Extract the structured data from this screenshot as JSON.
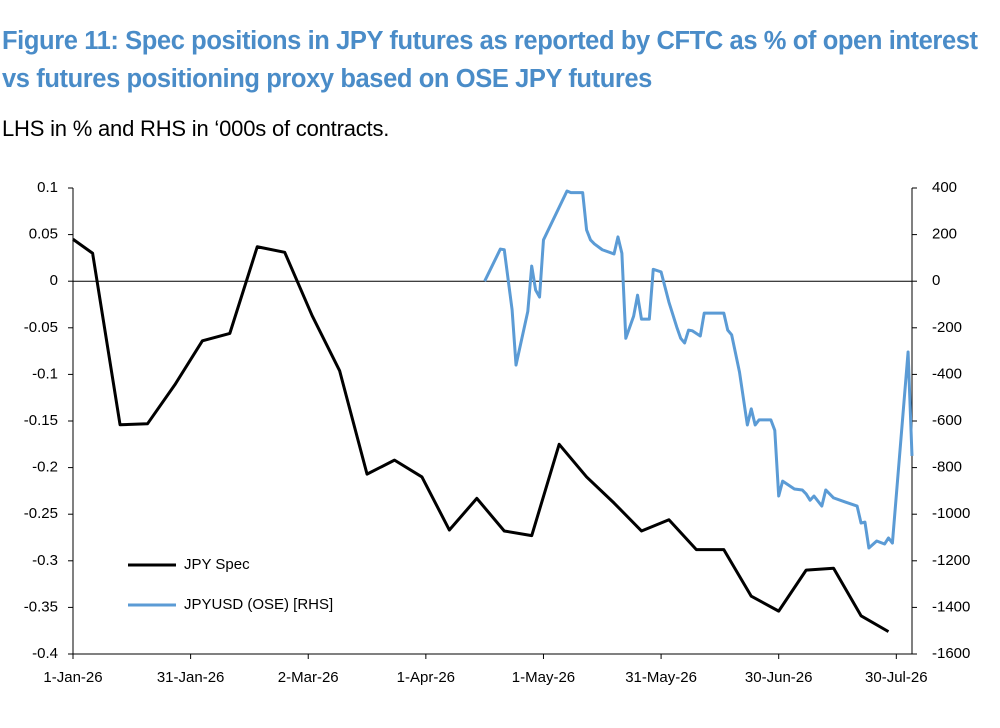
{
  "chart_data": {
    "type": "line",
    "title": "Figure 11: Spec positions in JPY futures as reported by CFTC as % of open interest vs futures positioning proxy based on OSE JPY futures",
    "subtitle": "LHS in % and RHS in ‘000s of contracts.",
    "xlim": [
      "2026-01-01",
      "2026-08-03"
    ],
    "xticks": [
      {
        "value": "2026-01-01",
        "label": "1-Jan-26"
      },
      {
        "value": "2026-01-31",
        "label": "31-Jan-26"
      },
      {
        "value": "2026-03-02",
        "label": "2-Mar-26"
      },
      {
        "value": "2026-04-01",
        "label": "1-Apr-26"
      },
      {
        "value": "2026-05-01",
        "label": "1-May-26"
      },
      {
        "value": "2026-05-31",
        "label": "31-May-26"
      },
      {
        "value": "2026-06-30",
        "label": "30-Jun-26"
      },
      {
        "value": "2026-07-30",
        "label": "30-Jul-26"
      }
    ],
    "ylim": [
      -0.4,
      0.1
    ],
    "yticks": [
      0.1,
      0.05,
      0,
      -0.05,
      -0.1,
      -0.15,
      -0.2,
      -0.25,
      -0.3,
      -0.35,
      -0.4
    ],
    "y2lim": [
      -1600,
      400
    ],
    "y2ticks": [
      400,
      200,
      0,
      -200,
      -400,
      -600,
      -800,
      -1000,
      -1200,
      -1400,
      -1600
    ],
    "legend": "lower left",
    "series": [
      {
        "name": "JPY Spec",
        "color": "#000000",
        "axis": "y",
        "x": [
          "2026-01-01",
          "2026-01-06",
          "2026-01-13",
          "2026-01-20",
          "2026-01-27",
          "2026-02-03",
          "2026-02-10",
          "2026-02-17",
          "2026-02-24",
          "2026-03-03",
          "2026-03-10",
          "2026-03-17",
          "2026-03-24",
          "2026-03-31",
          "2026-04-07",
          "2026-04-14",
          "2026-04-21",
          "2026-04-28",
          "2026-05-05",
          "2026-05-12",
          "2026-05-19",
          "2026-05-26",
          "2026-06-02",
          "2026-06-09",
          "2026-06-16",
          "2026-06-23",
          "2026-06-30",
          "2026-07-07",
          "2026-07-14",
          "2026-07-21",
          "2026-07-28"
        ],
        "values": [
          0.045,
          0.03,
          -0.154,
          -0.153,
          -0.111,
          -0.064,
          -0.056,
          0.037,
          0.031,
          -0.037,
          -0.096,
          -0.207,
          -0.192,
          -0.21,
          -0.267,
          -0.233,
          -0.268,
          -0.273,
          -0.175,
          -0.21,
          -0.238,
          -0.268,
          -0.256,
          -0.288,
          -0.288,
          -0.338,
          -0.354,
          -0.31,
          -0.308,
          -0.359,
          -0.376
        ]
      },
      {
        "name": "JPYUSD (OSE) [RHS]",
        "color": "#5b9bd5",
        "axis": "y2",
        "x": [
          "2026-04-16",
          "2026-04-20",
          "2026-04-21",
          "2026-04-23",
          "2026-04-24",
          "2026-04-27",
          "2026-04-28",
          "2026-04-29",
          "2026-04-30",
          "2026-05-01",
          "2026-05-07",
          "2026-05-08",
          "2026-05-11",
          "2026-05-12",
          "2026-05-13",
          "2026-05-14",
          "2026-05-16",
          "2026-05-19",
          "2026-05-20",
          "2026-05-21",
          "2026-05-22",
          "2026-05-24",
          "2026-05-25",
          "2026-05-26",
          "2026-05-28",
          "2026-05-29",
          "2026-05-31",
          "2026-06-01",
          "2026-06-02",
          "2026-06-04",
          "2026-06-05",
          "2026-06-06",
          "2026-06-07",
          "2026-06-08",
          "2026-06-10",
          "2026-06-11",
          "2026-06-16",
          "2026-06-17",
          "2026-06-18",
          "2026-06-20",
          "2026-06-22",
          "2026-06-23",
          "2026-06-24",
          "2026-06-25",
          "2026-06-28",
          "2026-06-29",
          "2026-06-30",
          "2026-07-01",
          "2026-07-04",
          "2026-07-06",
          "2026-07-07",
          "2026-07-08",
          "2026-07-09",
          "2026-07-11",
          "2026-07-12",
          "2026-07-14",
          "2026-07-17",
          "2026-07-20",
          "2026-07-21",
          "2026-07-22",
          "2026-07-23",
          "2026-07-25",
          "2026-07-27",
          "2026-07-28",
          "2026-07-29",
          "2026-08-02",
          "2026-08-03"
        ],
        "values": [
          0,
          138,
          135,
          -123,
          -360,
          -130,
          65,
          -38,
          -68,
          177,
          387,
          380,
          380,
          220,
          177,
          160,
          135,
          117,
          190,
          120,
          -245,
          -150,
          -60,
          -163,
          -163,
          51,
          40,
          -25,
          -90,
          -197,
          -245,
          -265,
          -210,
          -213,
          -235,
          -137,
          -137,
          -210,
          -230,
          -390,
          -617,
          -548,
          -617,
          -595,
          -595,
          -640,
          -922,
          -858,
          -892,
          -896,
          -913,
          -940,
          -922,
          -965,
          -896,
          -930,
          -948,
          -965,
          -1038,
          -1034,
          -1145,
          -1115,
          -1128,
          -1102,
          -1124,
          -304,
          -750
        ]
      }
    ]
  }
}
